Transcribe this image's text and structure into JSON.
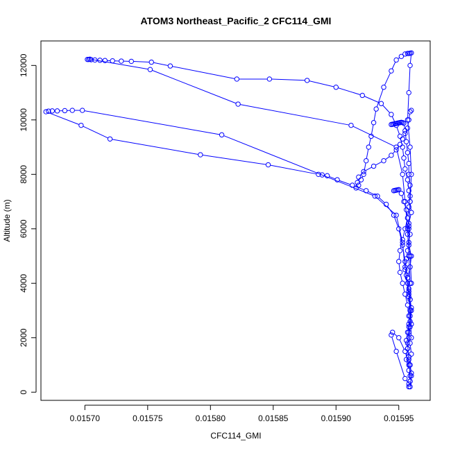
{
  "chart_data": {
    "type": "line",
    "title": "ATOM3 Northeast_Pacific_2 CFC114_GMI",
    "xlabel": "CFC114_GMI",
    "ylabel": "Altitude (m)",
    "xlim": [
      0.015665,
      0.015975
    ],
    "ylim": [
      -300,
      12900
    ],
    "x_ticks": [
      0.0157,
      0.01575,
      0.0158,
      0.01585,
      0.0159,
      0.01595
    ],
    "x_tick_labels": [
      "0.01570",
      "0.01575",
      "0.01580",
      "0.01585",
      "0.01590",
      "0.01595"
    ],
    "y_ticks": [
      0,
      2000,
      4000,
      6000,
      8000,
      10000,
      12000
    ],
    "y_tick_labels": [
      "0",
      "2000",
      "4000",
      "6000",
      "8000",
      "10000",
      "12000"
    ],
    "grid": false,
    "legend": "none",
    "series_color": "#0000ff",
    "series": [
      {
        "x": [
          0.015959,
          0.01596,
          0.015959,
          0.01596,
          0.015959,
          0.015958,
          0.015959,
          0.01596,
          0.015959,
          0.015958,
          0.015957,
          0.015959,
          0.01596,
          0.015958,
          0.015957,
          0.015958,
          0.01596,
          0.015959,
          0.015958,
          0.015957,
          0.015955,
          0.015954,
          0.015953,
          0.015951,
          0.015948,
          0.015944,
          0.015936,
          0.015921,
          0.0159,
          0.015877,
          0.015847,
          0.015821,
          0.015768,
          0.015753,
          0.015737,
          0.015729,
          0.015722,
          0.015716,
          0.015712,
          0.015708,
          0.015705,
          0.015703,
          0.015702,
          0.015704,
          0.015752,
          0.015822,
          0.015912,
          0.015948,
          0.015953,
          0.015955,
          0.015957,
          0.015958,
          0.015959,
          0.015959,
          0.01596
        ],
        "y": [
          200,
          600,
          1000,
          1400,
          1800,
          2200,
          2600,
          3000,
          3400,
          3800,
          4200,
          4600,
          5000,
          5400,
          5800,
          6200,
          6600,
          7000,
          7400,
          7800,
          8200,
          8600,
          9000,
          9400,
          9800,
          10200,
          10600,
          10900,
          11200,
          11450,
          11500,
          11500,
          11980,
          12120,
          12150,
          12160,
          12170,
          12180,
          12190,
          12200,
          12210,
          12220,
          12220,
          12230,
          11850,
          10580,
          9800,
          9000,
          8000,
          7000,
          6000,
          5000,
          4000,
          3000,
          2000
        ]
      },
      {
        "x": [
          0.015959,
          0.015958,
          0.015957,
          0.015958,
          0.015959,
          0.015958,
          0.015957,
          0.015955,
          0.015953,
          0.01595,
          0.015946,
          0.01594,
          0.015933,
          0.015924,
          0.015913,
          0.015901,
          0.015893,
          0.015889,
          0.015886,
          0.015846,
          0.015792,
          0.01572,
          0.015697,
          0.015669,
          0.015671,
          0.015674,
          0.015678,
          0.015684,
          0.01569,
          0.015698,
          0.015809,
          0.015931,
          0.015948,
          0.015953,
          0.015955,
          0.015958,
          0.01596
        ],
        "y": [
          600,
          1200,
          1800,
          2400,
          3000,
          3600,
          4200,
          4800,
          5400,
          6000,
          6500,
          6900,
          7200,
          7400,
          7600,
          7800,
          7950,
          7980,
          8000,
          8350,
          8720,
          9300,
          9800,
          10300,
          10320,
          10330,
          10330,
          10340,
          10350,
          10350,
          9450,
          7200,
          6500,
          5500,
          4500,
          3500,
          2500
        ]
      },
      {
        "x": [
          0.01596,
          0.015959,
          0.015958,
          0.015957,
          0.015955,
          0.015953,
          0.015951,
          0.015948,
          0.015944,
          0.015938,
          0.01593,
          0.015922,
          0.015918,
          0.015917,
          0.015916,
          0.015918,
          0.01592,
          0.015922,
          0.015924,
          0.015926,
          0.015928,
          0.01593,
          0.015932,
          0.015938,
          0.015944,
          0.015948,
          0.015952,
          0.015955,
          0.015957,
          0.015958,
          0.015959,
          0.01596,
          0.015959,
          0.015958,
          0.015957,
          0.015959,
          0.01596,
          0.015959,
          0.015958,
          0.015959,
          0.01596
        ],
        "y": [
          10350,
          10300,
          10000,
          9700,
          9500,
          9300,
          9100,
          8900,
          8700,
          8500,
          8300,
          8100,
          7900,
          7700,
          7500,
          7600,
          7800,
          8000,
          8500,
          9000,
          9400,
          9900,
          10400,
          11200,
          11800,
          12200,
          12330,
          12420,
          12440,
          12440,
          12450,
          12460,
          12000,
          11000,
          10000,
          9000,
          8000,
          7000,
          6000,
          5000,
          4000
        ]
      },
      {
        "x": [
          0.015944,
          0.015945,
          0.015946,
          0.015947,
          0.015948,
          0.015949,
          0.01595,
          0.015951,
          0.015952,
          0.015953,
          0.015954,
          0.015955,
          0.015956,
          0.015957,
          0.015958,
          0.015958,
          0.015959,
          0.015959,
          0.015958,
          0.015957,
          0.015955,
          0.015953,
          0.015951,
          0.01595,
          0.015951,
          0.015953,
          0.015955,
          0.015957,
          0.015958,
          0.015959,
          0.015958,
          0.015957,
          0.015956,
          0.015958,
          0.015959,
          0.015958,
          0.015955,
          0.015948,
          0.015944,
          0.015945,
          0.01595,
          0.015955,
          0.015958
        ],
        "y": [
          9830,
          9840,
          9850,
          9860,
          9870,
          9880,
          9890,
          9900,
          9910,
          9900,
          9880,
          9600,
          9200,
          8800,
          8400,
          8000,
          7600,
          7200,
          6800,
          6400,
          6000,
          5600,
          5200,
          4800,
          4400,
          4000,
          3600,
          3200,
          2800,
          2400,
          2000,
          1600,
          1200,
          800,
          400,
          300,
          500,
          1500,
          2100,
          2200,
          2000,
          1500,
          1000
        ]
      },
      {
        "x": [
          0.015946,
          0.015947,
          0.015948,
          0.015949,
          0.01595,
          0.015952,
          0.015954,
          0.015956,
          0.015957,
          0.015958,
          0.015959,
          0.015958,
          0.015957,
          0.015956,
          0.015955,
          0.015956,
          0.015957,
          0.015958,
          0.015959,
          0.01596,
          0.015959,
          0.015958,
          0.015957,
          0.015956,
          0.015957,
          0.015958,
          0.015959,
          0.01596,
          0.015959,
          0.015958
        ],
        "y": [
          7400,
          7410,
          7420,
          7430,
          7440,
          7300,
          7000,
          6700,
          6400,
          6100,
          5800,
          5500,
          5200,
          4900,
          4600,
          4300,
          4000,
          3700,
          3400,
          3100,
          2800,
          2500,
          2200,
          1900,
          1600,
          1300,
          1000,
          700,
          400,
          200
        ]
      }
    ]
  }
}
